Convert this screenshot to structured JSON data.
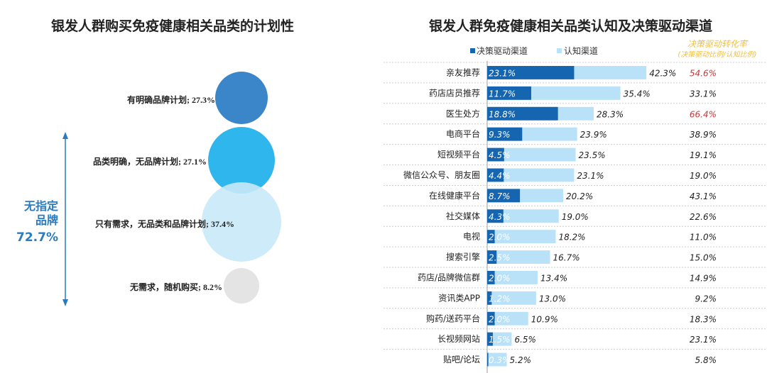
{
  "chart_data": [
    {
      "type": "bubble",
      "title": "银发人群购买免疫健康相关品类的计划性",
      "items": [
        {
          "label": "有明确品牌计划",
          "value": 27.3,
          "color": "#3a86c8"
        },
        {
          "label": "品类明确，无品牌计划",
          "value": 27.1,
          "color": "#2fb6ec"
        },
        {
          "label": "只有需求，无品类和品牌计划",
          "value": 37.4,
          "color": "#c9e9fa"
        },
        {
          "label": "无需求，随机购买",
          "value": 8.2,
          "color": "#e4e4e4"
        }
      ],
      "bracket": {
        "line1": "无指定",
        "line2": "品牌",
        "value": "72.7%",
        "color": "#2a7bc0"
      }
    },
    {
      "type": "bar",
      "title": "银发人群免疫健康相关品类认知及决策驱动渠道",
      "series": [
        {
          "name": "决策驱动渠道",
          "color": "#1565b0"
        },
        {
          "name": "认知渠道",
          "color": "#b9e1f7"
        }
      ],
      "rate_header": "决策驱动转化率",
      "rate_subheader": "(决策驱动比例/认知比例)",
      "rate_header_color": "#f0c040",
      "highlight_color": "#c0393b",
      "categories": [
        "亲友推荐",
        "药店店员推荐",
        "医生处方",
        "电商平台",
        "短视频平台",
        "微信公众号、朋友圈",
        "在线健康平台",
        "社交媒体",
        "电视",
        "搜索引擎",
        "药店/品牌微信群",
        "资讯类APP",
        "购药/送药平台",
        "长视频网站",
        "贴吧/论坛"
      ],
      "decision": [
        23.1,
        11.7,
        18.8,
        9.3,
        4.5,
        4.4,
        8.7,
        4.3,
        2.0,
        2.5,
        2.0,
        1.2,
        2.0,
        1.5,
        0.3
      ],
      "awareness": [
        42.3,
        35.4,
        28.3,
        23.9,
        23.5,
        23.1,
        20.2,
        19.0,
        18.2,
        16.7,
        13.4,
        13.0,
        10.9,
        6.5,
        5.2
      ],
      "rate": [
        "54.6%",
        "33.1%",
        "66.4%",
        "38.9%",
        "19.1%",
        "19.0%",
        "43.1%",
        "22.6%",
        "11.0%",
        "15.0%",
        "14.9%",
        "9.2%",
        "18.3%",
        "23.1%",
        "5.8%"
      ],
      "highlighted": [
        0,
        2
      ]
    }
  ]
}
